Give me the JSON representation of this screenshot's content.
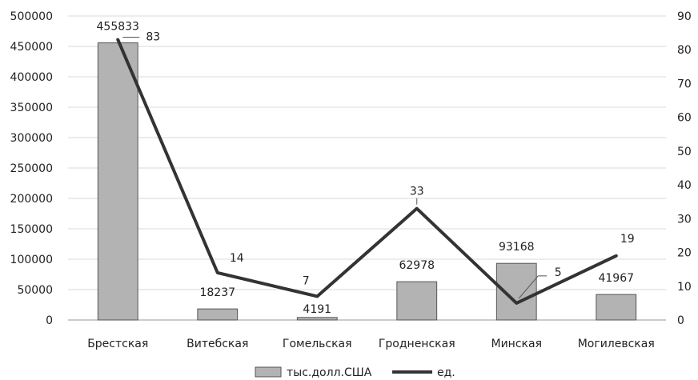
{
  "chart_data": {
    "type": "bar",
    "title": "",
    "categories": [
      "Брестская",
      "Витебская",
      "Гомельская",
      "Гродненская",
      "Минская",
      "Могилевская"
    ],
    "series": [
      {
        "name": "тыс.долл.США",
        "kind": "bar",
        "axis": "left",
        "color": "#b3b3b3",
        "values": [
          455833,
          18237,
          4191,
          62978,
          93168,
          41967
        ]
      },
      {
        "name": "ед.",
        "kind": "line",
        "axis": "right",
        "color": "#333333",
        "values": [
          83,
          14,
          7,
          33,
          5,
          19
        ]
      }
    ],
    "y_left": {
      "min": 0,
      "max": 500000,
      "step": 50000
    },
    "y_right": {
      "min": 0,
      "max": 90,
      "step": 10
    },
    "grid": true,
    "legend": "bottom",
    "bar_labels": [
      "455833",
      "18237",
      "4191",
      "62978",
      "93168",
      "41967"
    ],
    "line_labels": [
      "83",
      "14",
      "7",
      "33",
      "5",
      "19"
    ]
  }
}
